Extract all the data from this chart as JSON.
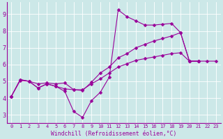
{
  "xlabel": "Windchill (Refroidissement éolien,°C)",
  "bg_color": "#cce8e8",
  "line_color": "#990099",
  "grid_color": "#ffffff",
  "xlim": [
    -0.5,
    23.5
  ],
  "ylim": [
    2.5,
    9.7
  ],
  "yticks": [
    3,
    4,
    5,
    6,
    7,
    8,
    9
  ],
  "xticks": [
    0,
    1,
    2,
    3,
    4,
    5,
    6,
    7,
    8,
    9,
    10,
    11,
    12,
    13,
    14,
    15,
    16,
    17,
    18,
    19,
    20,
    21,
    22,
    23
  ],
  "series_jagged": [
    [
      0,
      4.1
    ],
    [
      1,
      5.1
    ],
    [
      2,
      5.0
    ],
    [
      3,
      4.6
    ],
    [
      4,
      4.85
    ],
    [
      5,
      4.7
    ],
    [
      6,
      4.4
    ],
    [
      7,
      3.2
    ],
    [
      8,
      2.85
    ],
    [
      9,
      3.85
    ],
    [
      10,
      4.35
    ],
    [
      11,
      5.25
    ],
    [
      12,
      9.25
    ],
    [
      13,
      8.85
    ],
    [
      14,
      8.6
    ],
    [
      15,
      8.35
    ],
    [
      16,
      8.35
    ],
    [
      17,
      8.4
    ],
    [
      18,
      8.45
    ],
    [
      19,
      7.9
    ],
    [
      20,
      6.2
    ],
    [
      21,
      6.2
    ]
  ],
  "series_middle": [
    [
      0,
      4.1
    ],
    [
      1,
      5.1
    ],
    [
      2,
      5.0
    ],
    [
      3,
      4.85
    ],
    [
      4,
      4.9
    ],
    [
      5,
      4.85
    ],
    [
      6,
      4.9
    ],
    [
      7,
      4.5
    ],
    [
      8,
      4.45
    ],
    [
      9,
      4.95
    ],
    [
      10,
      5.5
    ],
    [
      11,
      5.85
    ],
    [
      12,
      6.4
    ],
    [
      13,
      6.65
    ],
    [
      14,
      7.0
    ],
    [
      15,
      7.2
    ],
    [
      16,
      7.4
    ],
    [
      17,
      7.55
    ],
    [
      18,
      7.7
    ],
    [
      19,
      7.9
    ],
    [
      20,
      6.2
    ],
    [
      21,
      6.2
    ]
  ],
  "series_bottom": [
    [
      0,
      4.1
    ],
    [
      1,
      5.05
    ],
    [
      2,
      5.0
    ],
    [
      3,
      4.6
    ],
    [
      4,
      4.85
    ],
    [
      5,
      4.7
    ],
    [
      6,
      4.55
    ],
    [
      7,
      4.5
    ],
    [
      8,
      4.5
    ],
    [
      9,
      4.85
    ],
    [
      10,
      5.15
    ],
    [
      11,
      5.5
    ],
    [
      12,
      5.85
    ],
    [
      13,
      6.05
    ],
    [
      14,
      6.25
    ],
    [
      15,
      6.35
    ],
    [
      16,
      6.45
    ],
    [
      17,
      6.55
    ],
    [
      18,
      6.65
    ],
    [
      19,
      6.7
    ],
    [
      20,
      6.2
    ],
    [
      21,
      6.2
    ],
    [
      22,
      6.2
    ],
    [
      23,
      6.2
    ]
  ]
}
